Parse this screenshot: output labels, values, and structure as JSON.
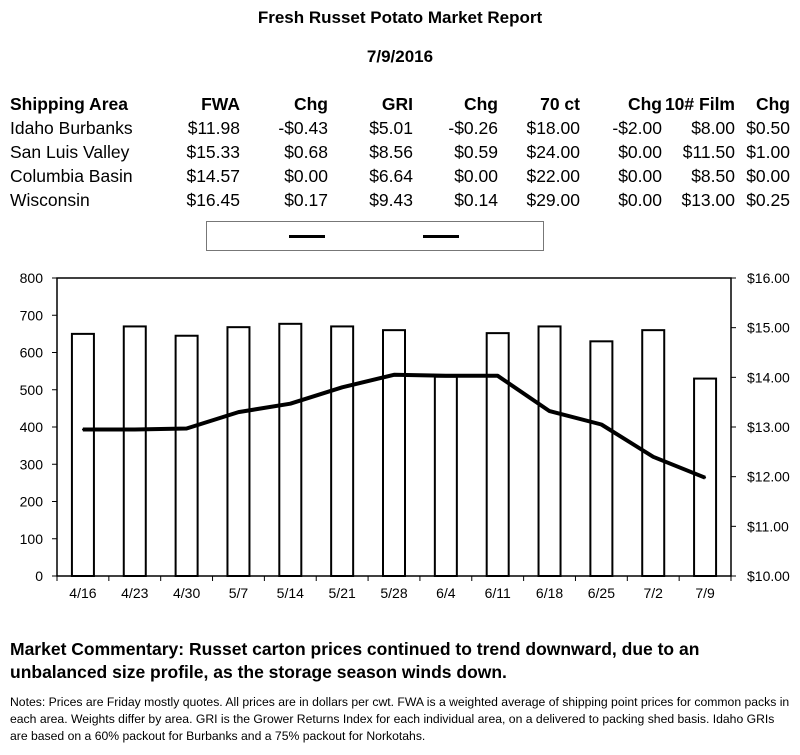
{
  "report": {
    "title": "Fresh Russet Potato Market Report",
    "date": "7/9/2016"
  },
  "price_table": {
    "headers": [
      "Shipping Area",
      "FWA",
      "Chg",
      "GRI",
      "Chg",
      "70 ct",
      "Chg",
      "10# Film",
      "Chg"
    ],
    "rows": [
      [
        "Idaho Burbanks",
        "$11.98",
        "-$0.43",
        "$5.01",
        "-$0.26",
        "$18.00",
        "-$2.00",
        "$8.00",
        "$0.50"
      ],
      [
        "San Luis Valley",
        "$15.33",
        "$0.68",
        "$8.56",
        "$0.59",
        "$24.00",
        "$0.00",
        "$11.50",
        "$1.00"
      ],
      [
        "Columbia Basin",
        "$14.57",
        "$0.00",
        "$6.64",
        "$0.00",
        "$22.00",
        "$0.00",
        "$8.50",
        "$0.00"
      ],
      [
        "Wisconsin",
        "$16.45",
        "$0.17",
        "$9.43",
        "$0.14",
        "$29.00",
        "$0.00",
        "$13.00",
        "$0.25"
      ]
    ]
  },
  "chart_data": {
    "type": "bar",
    "categories": [
      "4/16",
      "4/23",
      "4/30",
      "5/7",
      "5/14",
      "5/21",
      "5/28",
      "6/4",
      "6/11",
      "6/18",
      "6/25",
      "7/2",
      "7/9"
    ],
    "series": [
      {
        "type": "bar",
        "axis": "left",
        "values": [
          650,
          670,
          645,
          668,
          677,
          670,
          660,
          535,
          652,
          670,
          630,
          660,
          530
        ]
      },
      {
        "type": "line",
        "axis": "right",
        "values": [
          12.95,
          12.95,
          12.97,
          13.3,
          13.47,
          13.8,
          14.05,
          14.03,
          14.03,
          13.32,
          13.05,
          12.4,
          11.98
        ]
      }
    ],
    "left_axis": {
      "ylim": [
        0,
        800
      ],
      "ticks": [
        "0",
        "100",
        "200",
        "300",
        "400",
        "500",
        "600",
        "700",
        "800"
      ]
    },
    "right_axis": {
      "ylim": [
        10,
        16
      ],
      "ticks": [
        "$10.00",
        "$11.00",
        "$12.00",
        "$13.00",
        "$14.00",
        "$15.00",
        "$16.00"
      ]
    },
    "legend": {
      "placement": "top"
    },
    "grid": false
  },
  "commentary": "Market Commentary: Russet carton prices continued to trend downward, due to an unbalanced size profile, as the storage season winds down.",
  "notes": "Notes: Prices are Friday mostly quotes. All prices are in dollars per cwt. FWA is a weighted average of shipping point prices for  common packs in each area. Weights differ by area. GRI is the Grower Returns Index for each individual area, on a delivered to packing shed basis. Idaho GRIs are based on a 60% packout for Burbanks and a 75% packout for Norkotahs."
}
